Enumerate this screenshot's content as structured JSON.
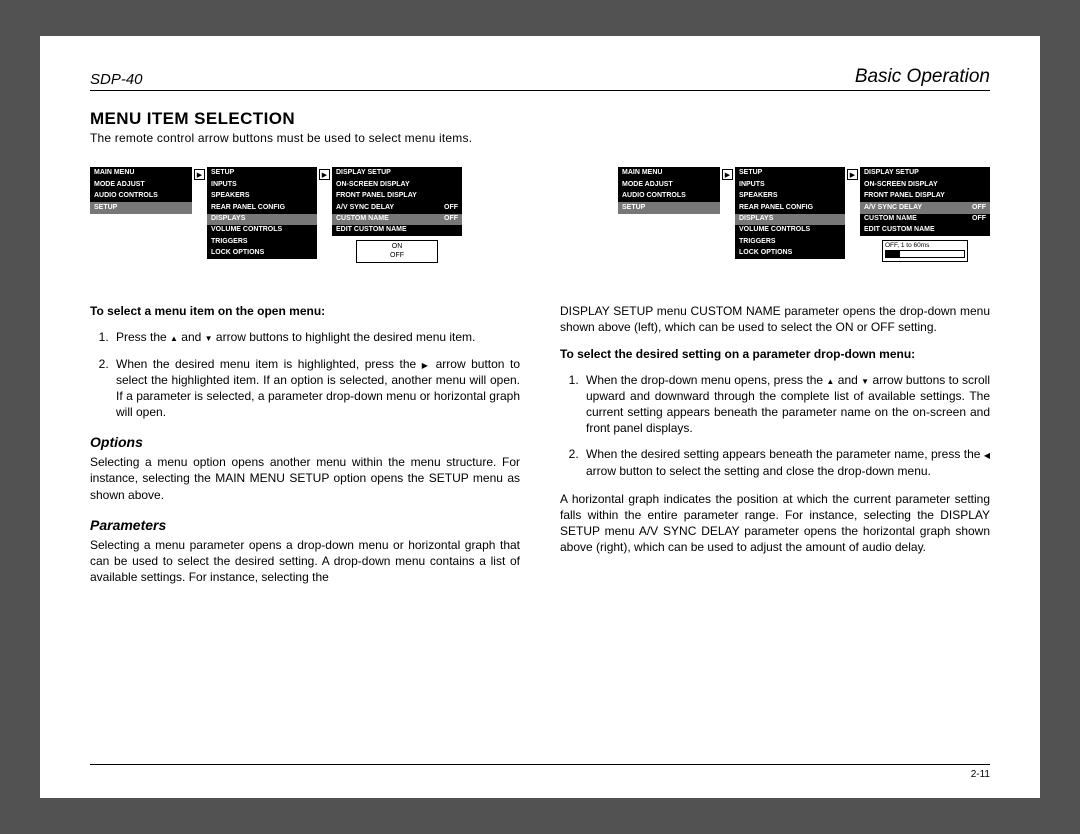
{
  "header": {
    "left": "SDP-40",
    "right": "Basic Operation"
  },
  "title": "MENU ITEM SELECTION",
  "intro": "The remote control arrow buttons must be used to select menu items.",
  "footer": "2-11",
  "menu1": {
    "header": "MAIN MENU",
    "rows": [
      "MODE ADJUST",
      "AUDIO CONTROLS",
      "SETUP"
    ],
    "highlight_index": 2
  },
  "menu2": {
    "header": "SETUP",
    "rows": [
      "INPUTS",
      "SPEAKERS",
      "REAR PANEL CONFIG",
      "DISPLAYS",
      "VOLUME CONTROLS",
      "TRIGGERS",
      "LOCK OPTIONS"
    ],
    "highlight_index": 3
  },
  "menu3_left": {
    "header": "DISPLAY SETUP",
    "rows": [
      {
        "l": "ON-SCREEN DISPLAY",
        "r": ""
      },
      {
        "l": "FRONT PANEL DISPLAY",
        "r": ""
      },
      {
        "l": "A/V SYNC DELAY",
        "r": "OFF"
      },
      {
        "l": "CUSTOM NAME",
        "r": "OFF"
      },
      {
        "l": "EDIT CUSTOM NAME",
        "r": ""
      }
    ],
    "highlight_index": 3,
    "sub": [
      "ON",
      "OFF"
    ]
  },
  "menu3_right": {
    "header": "DISPLAY SETUP",
    "rows": [
      {
        "l": "ON-SCREEN DISPLAY",
        "r": ""
      },
      {
        "l": "FRONT PANEL DISPLAY",
        "r": ""
      },
      {
        "l": "A/V SYNC DELAY",
        "r": "OFF"
      },
      {
        "l": "CUSTOM NAME",
        "r": "OFF"
      },
      {
        "l": "EDIT CUSTOM NAME",
        "r": ""
      }
    ],
    "highlight_index": 2,
    "sub_label": "OFF, 1 to 60ms",
    "fill_pct": 18
  },
  "left_col": {
    "h1": "To select a menu item on the open menu:",
    "li1a": "Press the ",
    "li1b": " and ",
    "li1c": " arrow buttons to highlight the desired menu item.",
    "li2a": "When the desired menu item is highlighted, press the ",
    "li2b": " arrow button to select the highlighted item. If an option is selected, another menu will open. If a parameter is selected, a parameter drop-down menu or horizontal graph will open.",
    "opt_h": "Options",
    "opt_p": "Selecting a menu option opens another menu within the menu structure. For instance, selecting the MAIN MENU SETUP option opens the SETUP menu as shown above.",
    "par_h": "Parameters",
    "par_p": "Selecting a menu parameter opens a drop-down menu or horizontal graph that can be used to select the desired setting. A drop-down menu contains a list of available settings. For instance, selecting the"
  },
  "right_col": {
    "p1": "DISPLAY SETUP menu CUSTOM NAME parameter opens the drop-down menu shown above (left), which can be used to select the ON or OFF setting.",
    "h1": "To select the desired setting on a parameter drop-down menu:",
    "li1a": "When the drop-down menu opens, press the ",
    "li1b": " and ",
    "li1c": " arrow buttons to scroll upward and downward through the complete list of available settings. The current setting appears beneath the parameter name on the on-screen and front panel displays.",
    "li2a": "When the desired setting appears beneath the parameter name, press the ",
    "li2b": " arrow button to select the setting and close the drop-down menu.",
    "p2": "A horizontal graph indicates the position at which the current parameter setting falls within the entire parameter range. For instance, selecting the DISPLAY SETUP menu A/V SYNC DELAY parameter opens the horizontal graph shown above (right), which can be used to adjust the amount of audio delay."
  }
}
